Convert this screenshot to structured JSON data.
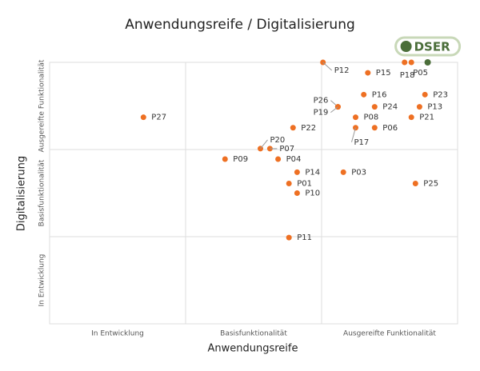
{
  "chart_data": {
    "type": "scatter",
    "title": "Anwendungsreife / Digitalisierung",
    "x_label": "Anwendungsreife",
    "y_label": "Digitalisierung",
    "xlim": [
      0,
      3
    ],
    "ylim": [
      0,
      3
    ],
    "xticks": [
      {
        "value": 0.5,
        "label": "In Entwicklung"
      },
      {
        "value": 1.5,
        "label": "Basisfunktionalität"
      },
      {
        "value": 2.5,
        "label": "Ausgereifte Funktionalität"
      }
    ],
    "yticks": [
      {
        "value": 0.5,
        "label": "In Entwicklung"
      },
      {
        "value": 1.5,
        "label": "Basisfunktionalität"
      },
      {
        "value": 2.5,
        "label": "Ausgereifte Funktionalität"
      }
    ],
    "xgrid": [
      1,
      2
    ],
    "ygrid": [
      1,
      2
    ],
    "color": "#ee7023",
    "labels": [
      "P12",
      "P15",
      "P18",
      "P05",
      "P16",
      "P23",
      "P26",
      "P19",
      "P24",
      "P13",
      "P08",
      "P21",
      "P27",
      "P22",
      "P06",
      "P17",
      "P20",
      "P07",
      "P09",
      "P04",
      "P14",
      "P03",
      "P01",
      "P25",
      "P10",
      "P11"
    ],
    "x": [
      2.01,
      2.34,
      2.61,
      2.66,
      2.31,
      2.76,
      2.12,
      2.12,
      2.39,
      2.72,
      2.25,
      2.66,
      0.69,
      1.79,
      2.39,
      2.25,
      1.55,
      1.62,
      1.29,
      1.68,
      1.82,
      2.16,
      1.76,
      2.69,
      1.82,
      1.76
    ],
    "values": [
      3.0,
      2.88,
      3.0,
      3.0,
      2.63,
      2.63,
      2.49,
      2.49,
      2.49,
      2.49,
      2.37,
      2.37,
      2.37,
      2.25,
      2.25,
      2.25,
      2.01,
      2.01,
      1.89,
      1.89,
      1.74,
      1.74,
      1.61,
      1.61,
      1.5,
      0.99
    ],
    "highlight": {
      "label": "DSER",
      "x": 2.78,
      "value": 3.0,
      "color": "#4b6e3a"
    }
  }
}
